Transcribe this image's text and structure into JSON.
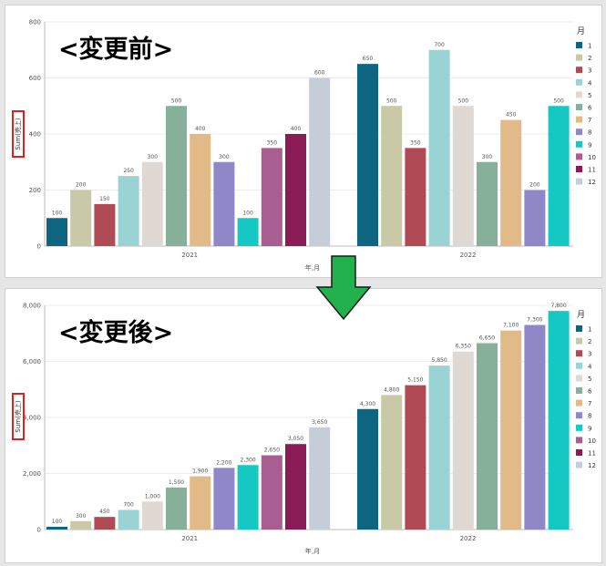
{
  "before": {
    "title": "<変更前>",
    "chart_data": {
      "type": "bar",
      "ylabel": "Sum(売上)",
      "xlabel": "年,月",
      "ylim": [
        0,
        800
      ],
      "yticks": [
        "0",
        "200",
        "400",
        "600",
        "800"
      ],
      "groups": [
        "2021",
        "2022"
      ],
      "legend_title": "月",
      "legend": [
        "1",
        "2",
        "3",
        "4",
        "5",
        "6",
        "7",
        "8",
        "9",
        "10",
        "11",
        "12"
      ],
      "colors": [
        "#0e6580",
        "#c9c9a8",
        "#b04a55",
        "#9ad3d3",
        "#e0d8d3",
        "#86b09a",
        "#e2ba88",
        "#8f87c8",
        "#16c8c4",
        "#a95e92",
        "#8a1c55",
        "#c5ced8"
      ],
      "series": [
        {
          "group": "2021",
          "values": [
            100,
            200,
            150,
            250,
            300,
            500,
            400,
            300,
            100,
            350,
            400,
            600
          ]
        },
        {
          "group": "2022",
          "values": [
            650,
            500,
            350,
            700,
            500,
            300,
            450,
            200,
            500
          ]
        }
      ]
    }
  },
  "after": {
    "title": "<変更後>",
    "chart_data": {
      "type": "bar",
      "ylabel": "Sum(売上)",
      "xlabel": "年,月",
      "ylim": [
        0,
        8000
      ],
      "yticks": [
        "0",
        "2,000",
        "4,000",
        "6,000",
        "8,000"
      ],
      "groups": [
        "2021",
        "2022"
      ],
      "legend_title": "月",
      "legend": [
        "1",
        "2",
        "3",
        "4",
        "5",
        "6",
        "7",
        "8",
        "9",
        "10",
        "11",
        "12"
      ],
      "colors": [
        "#0e6580",
        "#c9c9a8",
        "#b04a55",
        "#9ad3d3",
        "#e0d8d3",
        "#86b09a",
        "#e2ba88",
        "#8f87c8",
        "#16c8c4",
        "#a95e92",
        "#8a1c55",
        "#c5ced8"
      ],
      "series": [
        {
          "group": "2021",
          "values": [
            100,
            300,
            450,
            700,
            1000,
            1500,
            1900,
            2200,
            2300,
            2650,
            3050,
            3650
          ]
        },
        {
          "group": "2022",
          "values": [
            4300,
            4800,
            5150,
            5850,
            6350,
            6650,
            7100,
            7300,
            7800
          ]
        }
      ]
    }
  }
}
